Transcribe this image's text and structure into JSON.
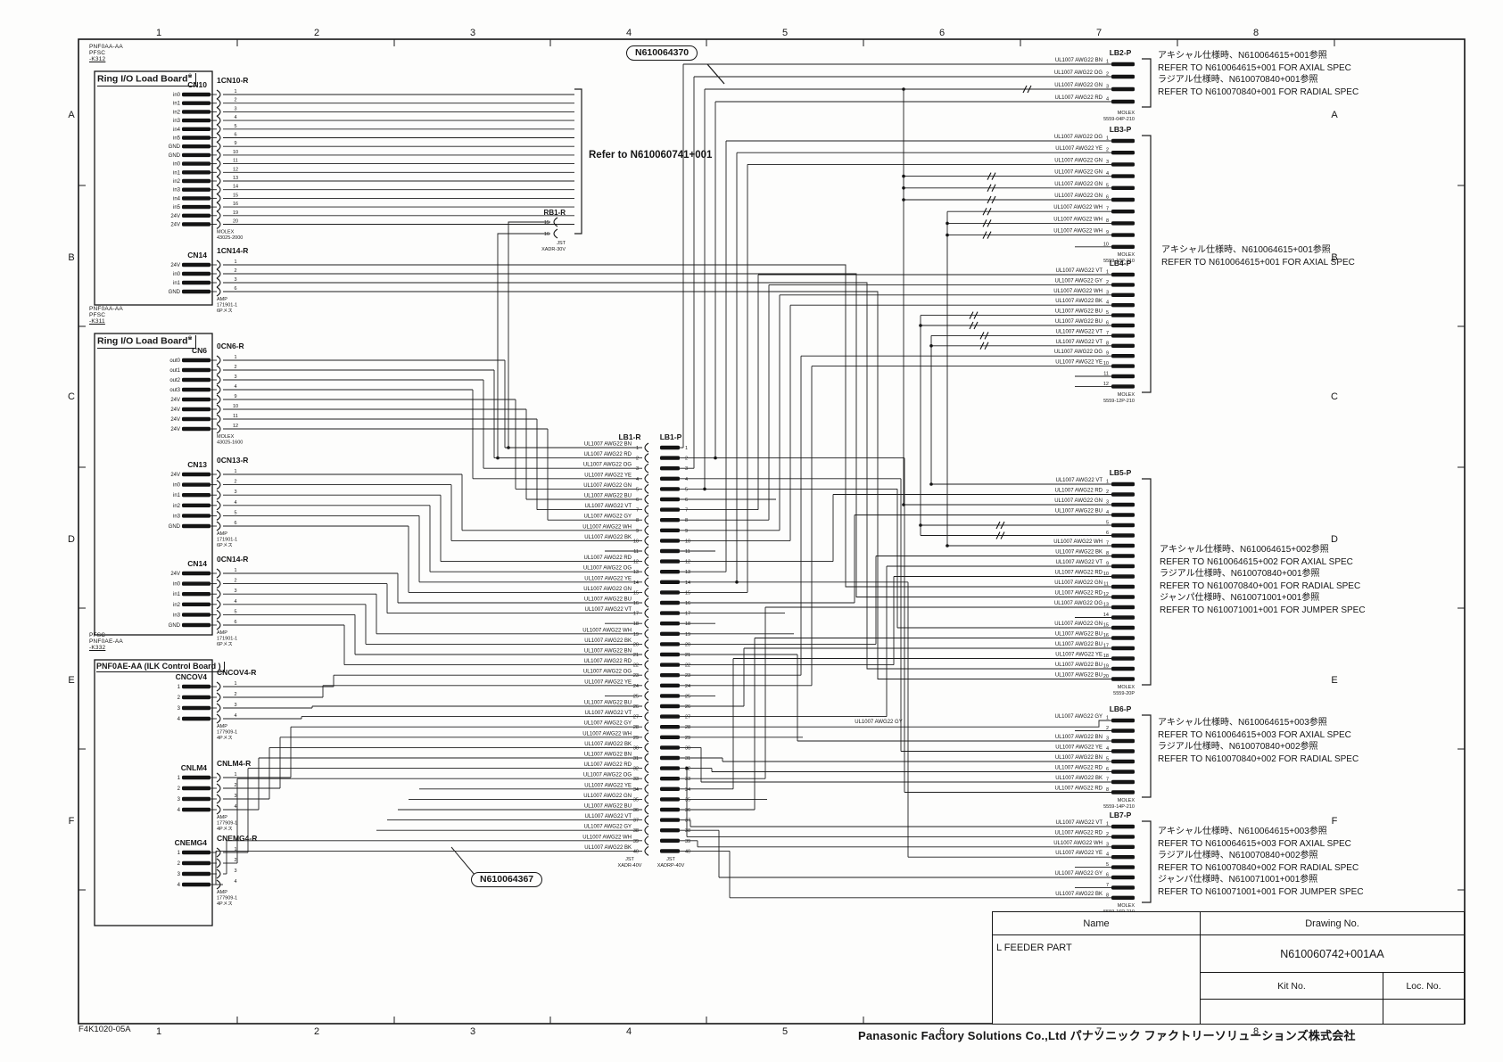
{
  "sheet": {
    "grid_cols": [
      "1",
      "2",
      "3",
      "4",
      "5",
      "6",
      "7",
      "8"
    ],
    "grid_rows": [
      "A",
      "B",
      "C",
      "D",
      "E",
      "F"
    ]
  },
  "footer": {
    "doc_code": "F4K1020-05A",
    "company": "Panasonic Factory Solutions Co.,Ltd パナソニック ファクトリーソリューションズ株式会社"
  },
  "title_block": {
    "name_header": "Name",
    "drawing_no_header": "Drawing No.",
    "name_value": "L FEEDER PART",
    "drawing_no_value": "N610060742+001AA",
    "kit_no_label": "Kit No.",
    "loc_no_label": "Loc. No."
  },
  "notes": {
    "refer": "Refer to N610060741+001",
    "tag_top": "N610064370",
    "tag_bottom": "N610064367"
  },
  "wire_spec": "UL1007 AWG22",
  "boards": [
    {
      "part_lines": [
        "PNF0AA-AA",
        "PFSC",
        "-K312"
      ],
      "title": "Ring I/O Load Board",
      "marker": "※",
      "connectors": [
        {
          "board_conn": "CN10",
          "harness_conn": "1CN10-R",
          "housing": [
            "MOLEX",
            "43025-2000"
          ],
          "pins": [
            [
              "in0",
              "1"
            ],
            [
              "in1",
              "2"
            ],
            [
              "in2",
              "3"
            ],
            [
              "in3",
              "4"
            ],
            [
              "in4",
              "5"
            ],
            [
              "in5",
              "6"
            ],
            [
              "GND",
              "9"
            ],
            [
              "GND",
              "10"
            ],
            [
              "in0",
              "11"
            ],
            [
              "in1",
              "12"
            ],
            [
              "in2",
              "13"
            ],
            [
              "in3",
              "14"
            ],
            [
              "in4",
              "15"
            ],
            [
              "in5",
              "16"
            ],
            [
              "24V",
              "19"
            ],
            [
              "24V",
              "20"
            ]
          ]
        },
        {
          "board_conn": "CN14",
          "harness_conn": "1CN14-R",
          "housing": [
            "AMP",
            "171901-1",
            "6Pメス"
          ],
          "pins": [
            [
              "24V",
              "1"
            ],
            [
              "in0",
              "2"
            ],
            [
              "in1",
              "3"
            ],
            [
              "GND",
              "6"
            ]
          ]
        }
      ]
    },
    {
      "part_lines": [
        "PNF0AA-AA",
        "PFSC",
        "-K311"
      ],
      "title": "Ring I/O Load Board",
      "marker": "※",
      "connectors": [
        {
          "board_conn": "CN6",
          "harness_conn": "0CN6-R",
          "housing": [
            "MOLEX",
            "43025-1600"
          ],
          "pins": [
            [
              "out0",
              "1"
            ],
            [
              "out1",
              "2"
            ],
            [
              "out2",
              "3"
            ],
            [
              "out3",
              "4"
            ],
            [
              "24V",
              "9"
            ],
            [
              "24V",
              "10"
            ],
            [
              "24V",
              "11"
            ],
            [
              "24V",
              "12"
            ]
          ]
        },
        {
          "board_conn": "CN13",
          "harness_conn": "0CN13-R",
          "housing": [
            "AMP",
            "171901-1",
            "6Pメス"
          ],
          "pins": [
            [
              "24V",
              "1"
            ],
            [
              "in0",
              "2"
            ],
            [
              "in1",
              "3"
            ],
            [
              "in2",
              "4"
            ],
            [
              "in3",
              "5"
            ],
            [
              "GND",
              "6"
            ]
          ]
        },
        {
          "board_conn": "CN14",
          "harness_conn": "0CN14-R",
          "housing": [
            "AMP",
            "171901-1",
            "6Pメス"
          ],
          "pins": [
            [
              "24V",
              "1"
            ],
            [
              "in0",
              "2"
            ],
            [
              "in1",
              "3"
            ],
            [
              "in2",
              "4"
            ],
            [
              "in3",
              "5"
            ],
            [
              "GND",
              "6"
            ]
          ]
        }
      ]
    },
    {
      "part_lines": [
        "PFSC",
        "PNF0AE-AA",
        "-K332"
      ],
      "title": "PNF0AE-AA (ILK Control Board )",
      "marker": "",
      "connectors": [
        {
          "board_conn": "CNCOV4",
          "harness_conn": "CNCOV4-R",
          "housing": [
            "AMP",
            "177909-1",
            "4Pメス"
          ],
          "pins": [
            [
              "1",
              "1"
            ],
            [
              "2",
              "2"
            ],
            [
              "3",
              "3"
            ],
            [
              "4",
              "4"
            ]
          ]
        },
        {
          "board_conn": "CNLM4",
          "harness_conn": "CNLM4-R",
          "housing": [
            "AMP",
            "177909-1",
            "4Pメス"
          ],
          "pins": [
            [
              "1",
              "1"
            ],
            [
              "2",
              "2"
            ],
            [
              "3",
              "3"
            ],
            [
              "4",
              "4"
            ]
          ]
        },
        {
          "board_conn": "CNEMG4",
          "harness_conn": "CNEMG4-R",
          "housing": [
            "AMP",
            "177909-1",
            "4Pメス"
          ],
          "pins": [
            [
              "1",
              "1"
            ],
            [
              "2",
              "2"
            ],
            [
              "3",
              "3"
            ],
            [
              "4",
              "4"
            ]
          ]
        }
      ]
    }
  ],
  "rb1": {
    "name": "RB1-R",
    "pins": [
      "15",
      "16"
    ],
    "housing": [
      "JST",
      "XADR-30V"
    ]
  },
  "lb1": {
    "left_name": "LB1-R",
    "right_name": "LB1-P",
    "left_housing": [
      "JST",
      "XADR-40V"
    ],
    "right_housing": [
      "JST",
      "XADRP-40V"
    ],
    "pin_colors": [
      "BN",
      "RD",
      "OG",
      "YE",
      "GN",
      "BU",
      "VT",
      "GY",
      "WH",
      "BK",
      null,
      "RD",
      "OG",
      "YE",
      "GN",
      "BU",
      "VT",
      null,
      "WH",
      "BK",
      "BN",
      "RD",
      "OG",
      "YE",
      null,
      "BU",
      "VT",
      "GY",
      "WH",
      "BK",
      "BN",
      "RD",
      "OG",
      "YE",
      "GN",
      "BU",
      "VT",
      "GY",
      "WH",
      "BK"
    ],
    "extra_wire_color": "GY"
  },
  "right_connectors": [
    {
      "name": "LB2-P",
      "housing": [
        "MOLEX",
        "5559-04P-210"
      ],
      "pins": [
        "BN",
        "OG",
        "GN",
        "RD"
      ]
    },
    {
      "name": "LB3-P",
      "housing": [
        "MOLEX",
        "5559-10P-210"
      ],
      "pins": [
        "OG",
        "YE",
        "GN",
        "GN",
        "GN",
        "GN",
        "WH",
        "WH",
        "WH",
        null
      ]
    },
    {
      "name": "LB4-P",
      "housing": [
        "MOLEX",
        "5559-12P-210"
      ],
      "pins": [
        "VT",
        "GY",
        "WH",
        "BK",
        "BU",
        "BU",
        "VT",
        "VT",
        "OG",
        "YE",
        null,
        null
      ]
    },
    {
      "name": "LB5-P",
      "housing": [
        "MOLEX",
        "5559-20P"
      ],
      "pins": [
        "VT",
        "RD",
        "GN",
        "BU",
        "J",
        "J",
        "WH",
        "BK",
        "VT",
        "RD",
        "GN",
        "RD",
        "OG",
        null,
        "GN",
        "BU",
        "BU",
        "YE",
        "BU",
        "BU"
      ]
    },
    {
      "name": "LB6-P",
      "housing": [
        "MOLEX",
        "5559-14P-210"
      ],
      "pins": [
        "GY",
        null,
        "BN",
        "YE",
        "BN",
        "RD",
        "BK",
        "RD"
      ]
    },
    {
      "name": "LB7-P",
      "housing": [
        "MOLEX",
        "5559-16P-210"
      ],
      "pins": [
        "VT",
        "RD",
        "WH",
        "YE",
        null,
        "GY",
        null,
        "BK"
      ]
    }
  ],
  "annotations": [
    {
      "lines": [
        "アキシャル仕様時、N610064615+001参照",
        "REFER TO N610064615+001 FOR AXIAL SPEC",
        "ラジアル仕様時、N610070840+001参照",
        "REFER TO N610070840+001 FOR RADIAL SPEC"
      ]
    },
    {
      "lines": [
        "アキシャル仕様時、N610064615+001参照",
        "REFER TO N610064615+001 FOR AXIAL SPEC"
      ]
    },
    {
      "lines": [
        "アキシャル仕様時、N610064615+002参照",
        "REFER TO N610064615+002 FOR AXIAL SPEC",
        "ラジアル仕様時、N610070840+001参照",
        "REFER TO N610070840+001 FOR RADIAL SPEC",
        "ジャンパ仕様時、N610071001+001参照",
        "REFER TO N610071001+001 FOR JUMPER SPEC"
      ]
    },
    {
      "lines": [
        "アキシャル仕様時、N610064615+003参照",
        "REFER TO N610064615+003 FOR AXIAL SPEC",
        "ラジアル仕様時、N610070840+002参照",
        "REFER TO N610070840+002 FOR RADIAL SPEC"
      ]
    },
    {
      "lines": [
        "アキシャル仕様時、N610064615+003参照",
        "REFER TO N610064615+003 FOR AXIAL SPEC",
        "ラジアル仕様時、N610070840+002参照",
        "REFER TO N610070840+002 FOR RADIAL SPEC",
        "ジャンパ仕様時、N610071001+001参照",
        "REFER TO N610071001+001 FOR JUMPER SPEC"
      ]
    }
  ]
}
